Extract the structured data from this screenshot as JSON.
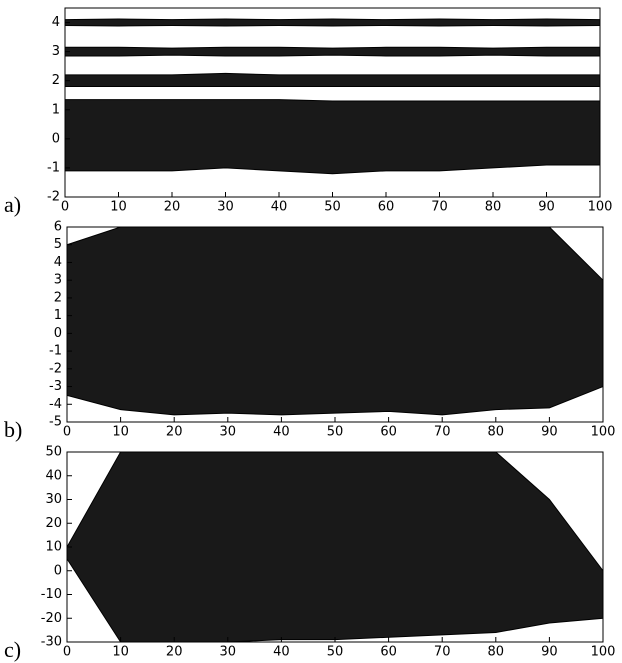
{
  "chart_data": [
    {
      "type": "band",
      "label": "a)",
      "x": [
        0,
        10,
        20,
        30,
        40,
        50,
        60,
        70,
        80,
        90,
        100
      ],
      "xlim": [
        0,
        100
      ],
      "xticks": [
        0,
        10,
        20,
        30,
        40,
        50,
        60,
        70,
        80,
        90,
        100
      ],
      "ylim": [
        -2,
        4.5
      ],
      "yticks": [
        -2,
        -1,
        0,
        1,
        2,
        3,
        4
      ],
      "series": [
        {
          "color": "#000000",
          "upper": [
            4.1,
            4.12,
            4.1,
            4.12,
            4.1,
            4.12,
            4.1,
            4.12,
            4.1,
            4.12,
            4.1
          ],
          "lower": [
            3.9,
            3.88,
            3.9,
            3.88,
            3.9,
            3.88,
            3.9,
            3.88,
            3.9,
            3.88,
            3.9
          ]
        },
        {
          "color": "#000000",
          "upper": [
            3.15,
            3.15,
            3.12,
            3.15,
            3.15,
            3.12,
            3.15,
            3.15,
            3.12,
            3.15,
            3.15
          ],
          "lower": [
            2.85,
            2.85,
            2.88,
            2.85,
            2.85,
            2.88,
            2.85,
            2.85,
            2.88,
            2.85,
            2.85
          ]
        },
        {
          "color": "#000000",
          "upper": [
            2.2,
            2.2,
            2.2,
            2.25,
            2.2,
            2.2,
            2.2,
            2.2,
            2.2,
            2.2,
            2.2
          ],
          "lower": [
            1.8,
            1.8,
            1.8,
            1.8,
            1.8,
            1.8,
            1.8,
            1.8,
            1.8,
            1.8,
            1.8
          ]
        },
        {
          "color": "#000000",
          "upper": [
            1.35,
            1.35,
            1.35,
            1.35,
            1.35,
            1.3,
            1.3,
            1.3,
            1.3,
            1.3,
            1.3
          ],
          "lower": [
            -1.1,
            -1.1,
            -1.1,
            -1.0,
            -1.1,
            -1.2,
            -1.1,
            -1.1,
            -1.0,
            -0.9,
            -0.9
          ]
        }
      ]
    },
    {
      "type": "band",
      "label": "b)",
      "x": [
        0,
        10,
        20,
        30,
        40,
        50,
        60,
        70,
        80,
        90,
        100
      ],
      "xlim": [
        0,
        100
      ],
      "xticks": [
        0,
        10,
        20,
        30,
        40,
        50,
        60,
        70,
        80,
        90,
        100
      ],
      "ylim": [
        -5,
        6
      ],
      "yticks": [
        -5,
        -4,
        -3,
        -2,
        -1,
        0,
        1,
        2,
        3,
        4,
        5,
        6
      ],
      "series": [
        {
          "color": "#000000",
          "upper": [
            5,
            6,
            6,
            6,
            6,
            6,
            6,
            6,
            6,
            6,
            3
          ],
          "lower": [
            -3.5,
            -4.3,
            -4.6,
            -4.5,
            -4.6,
            -4.5,
            -4.4,
            -4.6,
            -4.3,
            -4.2,
            -3
          ]
        }
      ]
    },
    {
      "type": "band",
      "label": "c)",
      "x": [
        0,
        10,
        20,
        30,
        40,
        50,
        60,
        70,
        80,
        90,
        100
      ],
      "xlim": [
        0,
        100
      ],
      "xticks": [
        0,
        10,
        20,
        30,
        40,
        50,
        60,
        70,
        80,
        90,
        100
      ],
      "ylim": [
        -30,
        50
      ],
      "yticks": [
        -30,
        -20,
        -10,
        0,
        10,
        20,
        30,
        40,
        50
      ],
      "series": [
        {
          "color": "#000000",
          "upper": [
            10,
            50,
            50,
            50,
            50,
            50,
            50,
            50,
            50,
            30,
            0
          ],
          "lower": [
            5,
            -30,
            -30,
            -30,
            -29,
            -29,
            -28,
            -27,
            -26,
            -22,
            -20
          ]
        }
      ]
    }
  ]
}
